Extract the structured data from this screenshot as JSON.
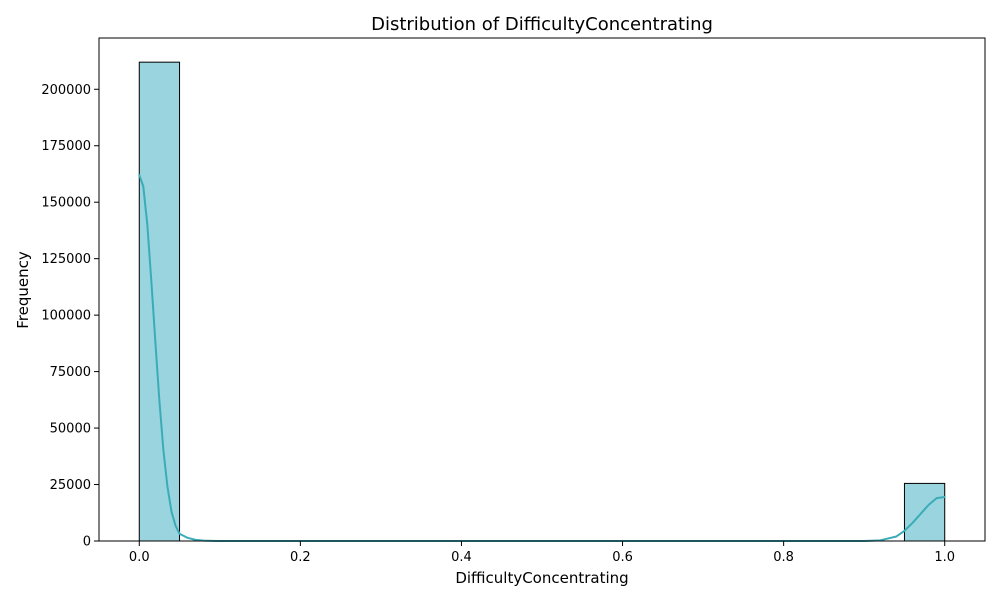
{
  "chart_data": {
    "type": "bar",
    "title": "Distribution of DifficultyConcentrating",
    "xlabel": "DifficultyConcentrating",
    "ylabel": "Frequency",
    "xlim": [
      -0.05,
      1.05
    ],
    "ylim": [
      0,
      222700
    ],
    "xticks": [
      0.0,
      0.2,
      0.4,
      0.6,
      0.8,
      1.0
    ],
    "xtick_labels": [
      "0.0",
      "0.2",
      "0.4",
      "0.6",
      "0.8",
      "1.0"
    ],
    "yticks": [
      0,
      25000,
      50000,
      75000,
      100000,
      125000,
      150000,
      175000,
      200000
    ],
    "ytick_labels": [
      "0",
      "25000",
      "50000",
      "75000",
      "100000",
      "125000",
      "150000",
      "175000",
      "200000"
    ],
    "bins": [
      {
        "x0": 0.0,
        "x1": 0.05,
        "count": 212000
      },
      {
        "x0": 0.95,
        "x1": 1.0,
        "count": 25500
      }
    ],
    "kde": {
      "x": [
        0.0,
        0.005,
        0.01,
        0.015,
        0.02,
        0.025,
        0.03,
        0.035,
        0.04,
        0.045,
        0.05,
        0.06,
        0.07,
        0.08,
        0.09,
        0.1,
        0.12,
        0.15,
        0.2,
        0.5,
        0.8,
        0.9,
        0.92,
        0.94,
        0.95,
        0.96,
        0.97,
        0.98,
        0.99,
        1.0
      ],
      "y": [
        162000,
        157000,
        140000,
        115000,
        88000,
        62000,
        40000,
        24000,
        13000,
        6800,
        3200,
        1400,
        500,
        150,
        40,
        0,
        0,
        0,
        0,
        0,
        0,
        0,
        300,
        2000,
        4500,
        8000,
        12000,
        16000,
        19000,
        19500
      ]
    },
    "grid": false,
    "colors": {
      "bar_fill": "#9ad4de",
      "bar_edge": "#000000",
      "kde_line": "#3aacb8"
    }
  }
}
